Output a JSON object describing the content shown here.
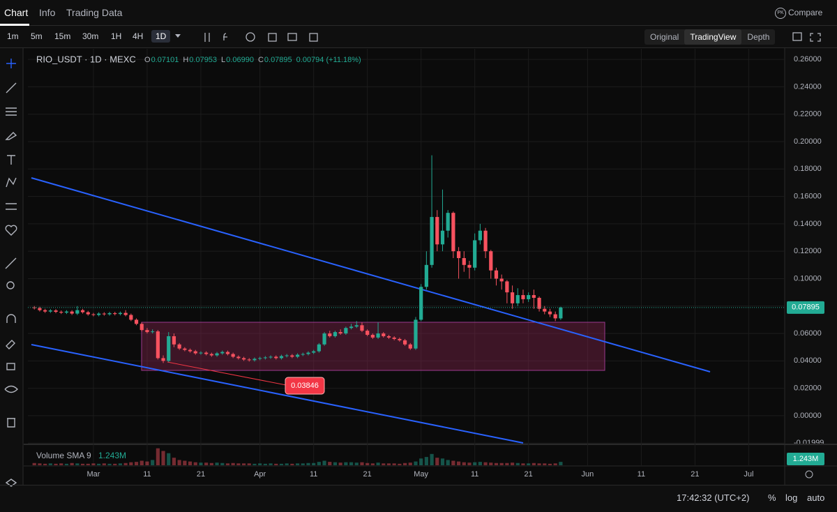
{
  "tabs": [
    "Chart",
    "Info",
    "Trading Data"
  ],
  "compare": {
    "badge": "PK",
    "label": "Compare"
  },
  "intervals": [
    "1m",
    "5m",
    "15m",
    "30m",
    "1H",
    "4H",
    "1D"
  ],
  "views": [
    "Original",
    "TradingView",
    "Depth"
  ],
  "status": {
    "time": "17:42:32 (UTC+2)",
    "options": [
      "%",
      "log",
      "auto"
    ]
  },
  "chart_data": {
    "type": "candlestick",
    "legend": {
      "symbol": "RIO_USDT · 1D · MEXC",
      "items": [
        {
          "key": "O",
          "value": "0.07101"
        },
        {
          "key": "H",
          "value": "0.07953"
        },
        {
          "key": "L",
          "value": "0.06990"
        },
        {
          "key": "C",
          "value": "0.07895"
        }
      ],
      "change": "0.00794 (+11.18%)"
    },
    "x": [
      -11,
      -10,
      -9,
      -8,
      -7,
      -6,
      -5,
      -4,
      -3,
      -2,
      -1,
      0,
      1,
      2,
      3,
      4,
      5,
      6,
      7,
      8,
      9,
      10,
      11,
      12,
      13,
      14,
      15,
      16,
      17,
      18,
      19,
      20,
      21,
      22,
      23,
      24,
      25,
      26,
      27,
      28,
      29,
      30,
      31,
      32,
      33,
      34,
      35,
      36,
      37,
      38,
      39,
      40,
      41,
      42,
      43,
      44,
      45,
      46,
      47,
      48,
      49,
      50,
      51,
      52,
      53,
      54,
      55,
      56,
      57,
      58,
      59,
      60,
      61,
      62,
      63,
      64,
      65,
      66,
      67,
      68,
      69,
      70,
      71,
      72,
      73,
      74,
      75,
      76,
      77,
      78,
      79,
      80,
      81,
      82,
      83,
      84,
      85,
      86,
      87
    ],
    "open": [
      0.079,
      0.0785,
      0.077,
      0.076,
      0.0768,
      0.0758,
      0.0752,
      0.076,
      0.0745,
      0.077,
      0.0755,
      0.074,
      0.0735,
      0.0745,
      0.074,
      0.0748,
      0.0742,
      0.075,
      0.0735,
      0.07,
      0.067,
      0.0625,
      0.061,
      0.0615,
      0.042,
      0.04,
      0.058,
      0.052,
      0.049,
      0.048,
      0.047,
      0.0455,
      0.046,
      0.045,
      0.044,
      0.0455,
      0.0465,
      0.045,
      0.043,
      0.042,
      0.041,
      0.0405,
      0.0415,
      0.042,
      0.0425,
      0.043,
      0.042,
      0.0435,
      0.044,
      0.043,
      0.0445,
      0.045,
      0.046,
      0.047,
      0.052,
      0.06,
      0.058,
      0.061,
      0.06,
      0.064,
      0.065,
      0.066,
      0.062,
      0.059,
      0.057,
      0.06,
      0.058,
      0.057,
      0.056,
      0.055,
      0.052,
      0.049,
      0.07,
      0.094,
      0.11,
      0.145,
      0.125,
      0.135,
      0.148,
      0.12,
      0.115,
      0.11,
      0.108,
      0.128,
      0.135,
      0.12,
      0.106,
      0.1,
      0.098,
      0.09,
      0.082,
      0.088,
      0.085,
      0.088,
      0.086,
      0.078,
      0.076,
      0.074,
      0.07101
    ],
    "high": [
      0.08,
      0.0795,
      0.078,
      0.0778,
      0.0778,
      0.0768,
      0.077,
      0.077,
      0.08,
      0.078,
      0.0765,
      0.075,
      0.0755,
      0.0755,
      0.0758,
      0.0758,
      0.076,
      0.077,
      0.0745,
      0.071,
      0.068,
      0.064,
      0.063,
      0.0625,
      0.044,
      0.061,
      0.06,
      0.053,
      0.05,
      0.049,
      0.048,
      0.047,
      0.047,
      0.046,
      0.0465,
      0.0475,
      0.0475,
      0.046,
      0.044,
      0.043,
      0.042,
      0.0425,
      0.043,
      0.0435,
      0.044,
      0.044,
      0.0445,
      0.045,
      0.045,
      0.0455,
      0.046,
      0.047,
      0.048,
      0.053,
      0.061,
      0.062,
      0.062,
      0.063,
      0.065,
      0.067,
      0.069,
      0.068,
      0.063,
      0.06,
      0.068,
      0.061,
      0.059,
      0.058,
      0.057,
      0.056,
      0.053,
      0.072,
      0.096,
      0.12,
      0.19,
      0.15,
      0.165,
      0.15,
      0.149,
      0.123,
      0.12,
      0.113,
      0.133,
      0.14,
      0.137,
      0.121,
      0.108,
      0.103,
      0.099,
      0.095,
      0.093,
      0.092,
      0.09,
      0.092,
      0.087,
      0.08,
      0.078,
      0.076,
      0.07953
    ],
    "low": [
      0.0775,
      0.076,
      0.075,
      0.075,
      0.0748,
      0.0742,
      0.0742,
      0.0735,
      0.0735,
      0.0745,
      0.073,
      0.0725,
      0.0725,
      0.073,
      0.073,
      0.0732,
      0.0732,
      0.0725,
      0.069,
      0.066,
      0.0615,
      0.06,
      0.06,
      0.041,
      0.03846,
      0.039,
      0.05,
      0.048,
      0.047,
      0.046,
      0.0445,
      0.0445,
      0.044,
      0.043,
      0.043,
      0.0445,
      0.044,
      0.042,
      0.041,
      0.04,
      0.0395,
      0.0395,
      0.0405,
      0.041,
      0.0415,
      0.041,
      0.041,
      0.0425,
      0.042,
      0.042,
      0.0435,
      0.044,
      0.045,
      0.046,
      0.051,
      0.057,
      0.057,
      0.059,
      0.059,
      0.063,
      0.064,
      0.061,
      0.058,
      0.056,
      0.056,
      0.057,
      0.056,
      0.055,
      0.054,
      0.051,
      0.048,
      0.048,
      0.069,
      0.092,
      0.108,
      0.12,
      0.12,
      0.13,
      0.115,
      0.1,
      0.105,
      0.1,
      0.106,
      0.125,
      0.115,
      0.1,
      0.095,
      0.092,
      0.082,
      0.078,
      0.08,
      0.082,
      0.083,
      0.078,
      0.076,
      0.074,
      0.072,
      0.069,
      0.0699
    ],
    "close": [
      0.0785,
      0.077,
      0.076,
      0.0768,
      0.0758,
      0.0752,
      0.076,
      0.0745,
      0.077,
      0.0755,
      0.074,
      0.0735,
      0.0745,
      0.074,
      0.0748,
      0.0742,
      0.075,
      0.0735,
      0.07,
      0.067,
      0.0625,
      0.061,
      0.0615,
      0.042,
      0.04,
      0.058,
      0.052,
      0.049,
      0.048,
      0.047,
      0.0455,
      0.046,
      0.045,
      0.044,
      0.0455,
      0.0465,
      0.045,
      0.043,
      0.042,
      0.041,
      0.0405,
      0.0415,
      0.042,
      0.0425,
      0.043,
      0.042,
      0.0435,
      0.044,
      0.043,
      0.0445,
      0.045,
      0.046,
      0.047,
      0.052,
      0.06,
      0.058,
      0.061,
      0.06,
      0.064,
      0.065,
      0.066,
      0.062,
      0.059,
      0.057,
      0.06,
      0.058,
      0.057,
      0.056,
      0.055,
      0.052,
      0.049,
      0.07,
      0.094,
      0.11,
      0.145,
      0.125,
      0.135,
      0.148,
      0.12,
      0.115,
      0.11,
      0.108,
      0.128,
      0.135,
      0.12,
      0.106,
      0.1,
      0.098,
      0.09,
      0.082,
      0.088,
      0.085,
      0.088,
      0.086,
      0.078,
      0.076,
      0.074,
      0.07101,
      0.07895
    ],
    "volume": [
      0.6,
      0.5,
      0.4,
      0.5,
      0.4,
      0.5,
      0.4,
      0.6,
      0.5,
      0.4,
      0.4,
      0.5,
      0.4,
      0.5,
      0.4,
      0.4,
      0.5,
      0.6,
      0.8,
      0.9,
      1.2,
      1.0,
      1.4,
      4.5,
      3.8,
      3.2,
      2.0,
      1.4,
      1.2,
      1.0,
      0.8,
      0.7,
      0.7,
      0.6,
      0.7,
      0.6,
      0.5,
      0.6,
      0.5,
      0.5,
      0.5,
      0.4,
      0.5,
      0.4,
      0.5,
      0.4,
      0.4,
      0.5,
      0.4,
      0.5,
      0.5,
      0.6,
      0.6,
      0.9,
      1.2,
      0.9,
      0.8,
      0.7,
      0.8,
      0.8,
      0.7,
      0.8,
      0.6,
      0.5,
      0.7,
      0.5,
      0.5,
      0.5,
      0.4,
      0.6,
      0.7,
      1.0,
      1.8,
      2.2,
      3.0,
      2.0,
      1.8,
      1.4,
      1.2,
      1.0,
      0.8,
      0.7,
      0.8,
      0.9,
      0.8,
      0.7,
      0.6,
      0.6,
      0.6,
      0.7,
      0.6,
      0.5,
      0.5,
      0.6,
      0.5,
      0.5,
      0.4,
      0.5,
      0.9
    ],
    "xlim": [
      -12.2,
      128.7
    ],
    "ylim": [
      -0.0204,
      0.2677
    ],
    "volume_ylim": [
      0,
      5
    ],
    "xticks": [
      {
        "value": 0,
        "label": "Mar"
      },
      {
        "value": 10,
        "label": "11"
      },
      {
        "value": 20,
        "label": "21"
      },
      {
        "value": 31,
        "label": "Apr"
      },
      {
        "value": 41,
        "label": "11"
      },
      {
        "value": 51,
        "label": "21"
      },
      {
        "value": 61,
        "label": "May"
      },
      {
        "value": 71,
        "label": "11"
      },
      {
        "value": 81,
        "label": "21"
      },
      {
        "value": 92,
        "label": "Jun"
      },
      {
        "value": 102,
        "label": "11"
      },
      {
        "value": 112,
        "label": "21"
      },
      {
        "value": 122,
        "label": "Jul"
      }
    ],
    "yticks": [
      {
        "value": 0.26,
        "label": "0.26000"
      },
      {
        "value": 0.24,
        "label": "0.24000"
      },
      {
        "value": 0.22,
        "label": "0.22000"
      },
      {
        "value": 0.2,
        "label": "0.20000"
      },
      {
        "value": 0.18,
        "label": "0.18000"
      },
      {
        "value": 0.16,
        "label": "0.16000"
      },
      {
        "value": 0.14,
        "label": "0.14000"
      },
      {
        "value": 0.12,
        "label": "0.12000"
      },
      {
        "value": 0.1,
        "label": "0.10000"
      },
      {
        "value": 0.08,
        "label": "0.08000"
      },
      {
        "value": 0.06,
        "label": "0.06000"
      },
      {
        "value": 0.04,
        "label": "0.04000"
      },
      {
        "value": 0.02,
        "label": "0.02000"
      },
      {
        "value": 0,
        "label": "0.00000"
      },
      -0.01999
    ],
    "grid": true,
    "up_color": "#22ab94",
    "down_color": "#f7525f",
    "volume_label": "Volume SMA 9",
    "volume_value_label": "1.243M",
    "low_annotation": "0.03846"
  }
}
